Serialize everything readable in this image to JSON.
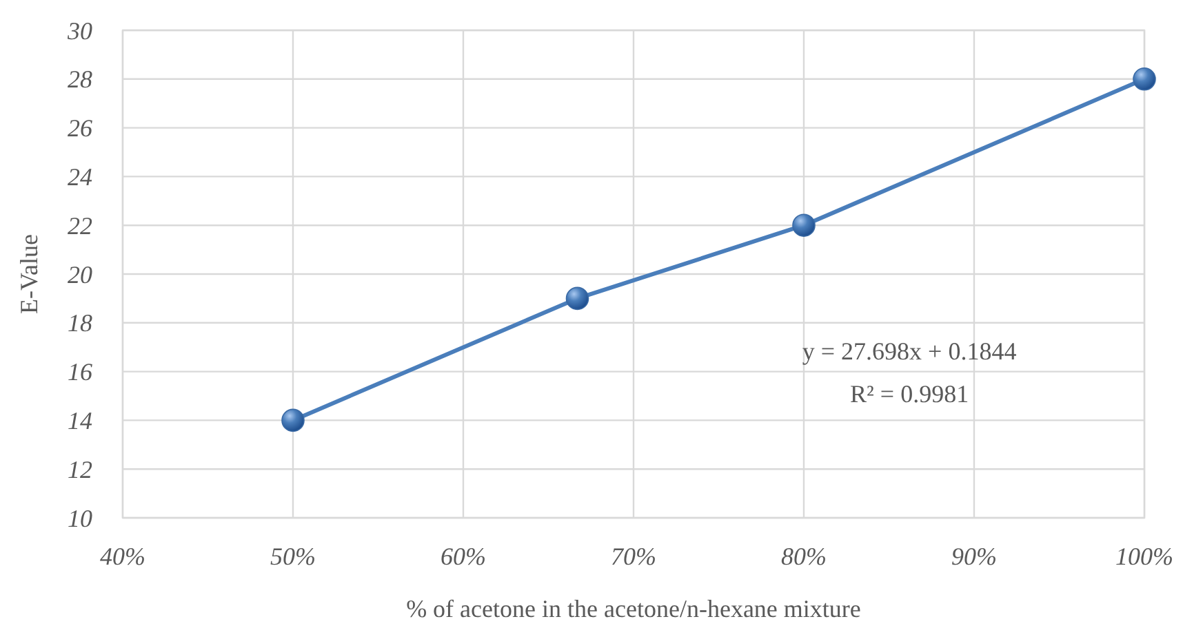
{
  "chart_data": {
    "type": "line",
    "xlabel": "% of acetone in the acetone/n-hexane mixture",
    "ylabel": "E-Value",
    "x": [
      0.5,
      0.667,
      0.8,
      1.0
    ],
    "series": [
      {
        "color": "#4a7ebb",
        "values": [
          14,
          19,
          22,
          28
        ]
      }
    ],
    "xlim": [
      0.4,
      1.0
    ],
    "xticks": [
      {
        "value": 0.4,
        "label": "40%"
      },
      {
        "value": 0.5,
        "label": "50%"
      },
      {
        "value": 0.6,
        "label": "60%"
      },
      {
        "value": 0.7,
        "label": "70%"
      },
      {
        "value": 0.8,
        "label": "80%"
      },
      {
        "value": 0.9,
        "label": "90%"
      },
      {
        "value": 1.0,
        "label": "100%"
      }
    ],
    "ylim": [
      10,
      30
    ],
    "yticks": [
      10,
      12,
      14,
      16,
      18,
      20,
      22,
      24,
      26,
      28,
      30
    ],
    "grid": true,
    "marker": "circle",
    "line_style": "solid",
    "annotations": [
      "y = 27.698x + 0.1844",
      "R² = 0.9981"
    ]
  }
}
